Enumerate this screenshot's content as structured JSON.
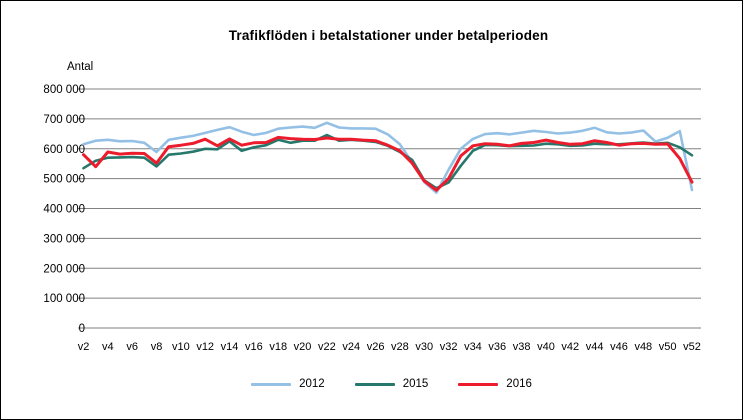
{
  "chart_data": {
    "type": "line",
    "title": "Trafikflöden i betalstationer under betalperioden",
    "ylabel": "Antal",
    "xlabel": "",
    "ylim": [
      0,
      800000
    ],
    "ytick_interval": 100000,
    "grid": true,
    "legend_position": "bottom-center",
    "gridline_color": "#808080",
    "ytick_labels": [
      "0",
      "100 000",
      "200 000",
      "300 000",
      "400 000",
      "500 000",
      "600 000",
      "700 000",
      "800 000"
    ],
    "xtick_labels": [
      "v2",
      "v4",
      "v6",
      "v8",
      "v10",
      "v12",
      "v14",
      "v16",
      "v18",
      "v20",
      "v22",
      "v24",
      "v26",
      "v28",
      "v30",
      "v32",
      "v34",
      "v36",
      "v38",
      "v40",
      "v42",
      "v44",
      "v46",
      "v48",
      "v50",
      "v52"
    ],
    "x_weeks": [
      2,
      3,
      4,
      5,
      6,
      7,
      8,
      9,
      10,
      11,
      12,
      13,
      14,
      15,
      16,
      17,
      18,
      19,
      20,
      21,
      22,
      23,
      24,
      25,
      26,
      27,
      28,
      29,
      30,
      31,
      32,
      33,
      34,
      35,
      36,
      37,
      38,
      39,
      40,
      41,
      42,
      43,
      44,
      45,
      46,
      47,
      48,
      49,
      50,
      51,
      52
    ],
    "series": [
      {
        "name": "2012",
        "color": "#94C0E6",
        "line_width": 2.6,
        "values": [
          615000,
          627000,
          630000,
          625000,
          626000,
          620000,
          589000,
          630000,
          637000,
          643000,
          653000,
          663000,
          672000,
          657000,
          646000,
          653000,
          667000,
          671000,
          674000,
          670000,
          687000,
          671000,
          668000,
          668000,
          667000,
          648000,
          615000,
          555000,
          488000,
          453000,
          530000,
          600000,
          633000,
          649000,
          652000,
          648000,
          654000,
          660000,
          656000,
          651000,
          654000,
          660000,
          670000,
          655000,
          651000,
          654000,
          661000,
          624000,
          637000,
          659000,
          462000
        ]
      },
      {
        "name": "2015",
        "color": "#26786C",
        "line_width": 2.6,
        "values": [
          535000,
          560000,
          570000,
          571000,
          572000,
          570000,
          541000,
          580000,
          584000,
          590000,
          600000,
          598000,
          625000,
          593000,
          605000,
          612000,
          630000,
          620000,
          627000,
          627000,
          646000,
          627000,
          630000,
          627000,
          623000,
          610000,
          589000,
          563000,
          494000,
          468000,
          487000,
          543000,
          593000,
          613000,
          612000,
          609000,
          610000,
          611000,
          617000,
          615000,
          610000,
          611000,
          617000,
          615000,
          615000,
          618000,
          621000,
          617000,
          620000,
          605000,
          578000
        ]
      },
      {
        "name": "2016",
        "color": "#EC1C2C",
        "line_width": 3,
        "values": [
          580000,
          540000,
          589000,
          582000,
          585000,
          584000,
          552000,
          607000,
          612000,
          618000,
          632000,
          610000,
          633000,
          612000,
          620000,
          621000,
          638000,
          634000,
          632000,
          631000,
          636000,
          632000,
          632000,
          629000,
          627000,
          612000,
          593000,
          552000,
          492000,
          461000,
          500000,
          576000,
          610000,
          617000,
          615000,
          610000,
          618000,
          621000,
          629000,
          621000,
          615000,
          617000,
          627000,
          621000,
          612000,
          617000,
          618000,
          615000,
          616000,
          567000,
          488000
        ]
      }
    ]
  }
}
